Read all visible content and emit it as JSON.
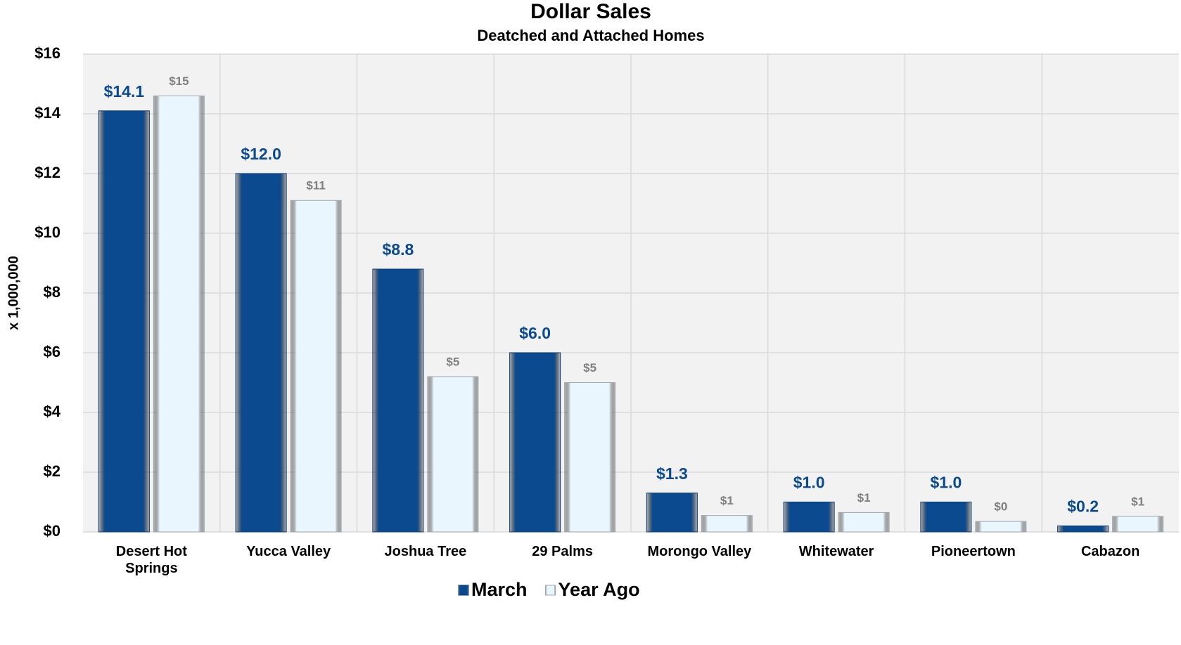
{
  "chart_data": {
    "type": "bar",
    "title": "Dollar Sales",
    "subtitle": "Deatched and Attached Homes",
    "y_label": "x 1,000,000",
    "categories": [
      "Desert Hot Springs",
      "Yucca Valley",
      "Joshua Tree",
      "29 Palms",
      "Morongo Valley",
      "Whitewater",
      "Pioneertown",
      "Cabazon"
    ],
    "series": [
      {
        "name": "March",
        "color": "#0b4a8f",
        "values": [
          14.1,
          12.0,
          8.8,
          6.0,
          1.3,
          1.0,
          1.0,
          0.2
        ],
        "value_labels": [
          "$14.1",
          "$12.0",
          "$8.8",
          "$6.0",
          "$1.3",
          "$1.0",
          "$1.0",
          "$0.2"
        ]
      },
      {
        "name": "Year Ago",
        "color": "#eaf6fd",
        "values": [
          14.6,
          11.1,
          5.2,
          5.0,
          0.55,
          0.65,
          0.35,
          0.52
        ],
        "value_labels": [
          "$15",
          "$11",
          "$5",
          "$5",
          "$1",
          "$1",
          "$0",
          "$1"
        ]
      }
    ],
    "ylim": [
      0,
      16
    ],
    "yticks": [
      {
        "value": 0,
        "label": "$0"
      },
      {
        "value": 2,
        "label": "$2"
      },
      {
        "value": 4,
        "label": "$4"
      },
      {
        "value": 6,
        "label": "$6"
      },
      {
        "value": 8,
        "label": "$8"
      },
      {
        "value": 10,
        "label": "$10"
      },
      {
        "value": 12,
        "label": "$12"
      },
      {
        "value": 14,
        "label": "$14"
      },
      {
        "value": 16,
        "label": "$16"
      }
    ],
    "grid": true,
    "legend": "bottom"
  }
}
